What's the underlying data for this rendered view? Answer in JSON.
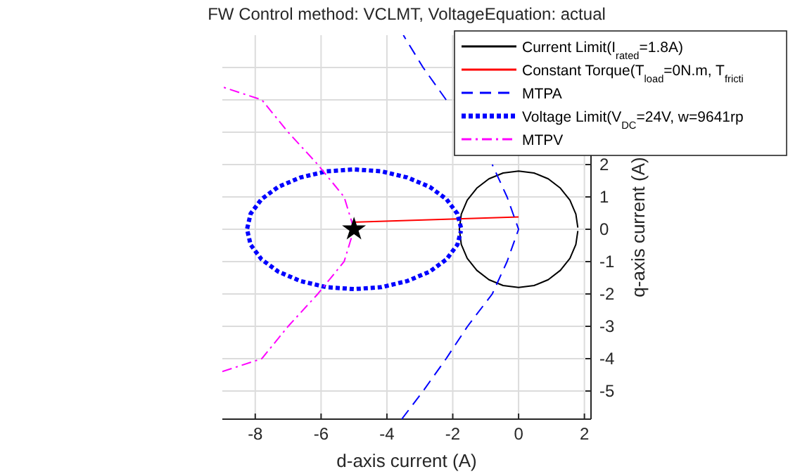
{
  "chart_data": {
    "type": "line",
    "title": "FW Control method: VCLMT, VoltageEquation: actual",
    "xlabel": "d-axis current (A)",
    "ylabel": "q-axis current (A)",
    "xlim": [
      -9,
      2.2
    ],
    "ylim": [
      -5.87,
      6
    ],
    "xticks": [
      -8,
      -6,
      -4,
      -2,
      0,
      2
    ],
    "yticks": [
      -5,
      -4,
      -3,
      -2,
      -1,
      0,
      1,
      2,
      {
        "value": 3,
        "label": null
      },
      {
        "value": 4,
        "label": null
      },
      {
        "value": 5,
        "label": null
      }
    ],
    "grid": true,
    "legend": "top right",
    "series": [
      {
        "name": "Current  Limit(I$_{rated}$=1.8A)",
        "color": "#000000",
        "line_style": "solid",
        "x": [
          1.8,
          1.74,
          1.56,
          1.27,
          0.9,
          0.47,
          0,
          -0.47,
          -0.9,
          -1.27,
          -1.56,
          -1.74,
          -1.8,
          -1.74,
          -1.56,
          -1.27,
          -0.9,
          -0.47,
          0,
          0.47,
          0.9,
          1.27,
          1.56,
          1.74,
          1.8
        ],
        "values": [
          0.05,
          0.47,
          0.9,
          1.27,
          1.56,
          1.74,
          1.8,
          1.74,
          1.56,
          1.27,
          0.9,
          0.47,
          0,
          -0.47,
          -0.9,
          -1.27,
          -1.56,
          -1.74,
          -1.8,
          -1.74,
          -1.56,
          -1.27,
          -0.9,
          -0.47,
          -0.05
        ]
      },
      {
        "name": "Constant  Torque(T$_{load}$=0N.m,  T$_{fricti}$",
        "color": "#ff0000",
        "line_style": "solid",
        "x": [
          -5,
          0
        ],
        "values": [
          0.22,
          0.38
        ]
      },
      {
        "name": "MTPA",
        "color": "#0000ff",
        "line_style": "dashed",
        "x": [
          -3.55,
          -2.9,
          -2.2,
          -1.55,
          -0.8,
          -0.35,
          0,
          -0.35,
          -0.8,
          -1.55,
          -2.2,
          -2.9,
          -3.5
        ],
        "values": [
          -5.87,
          -5,
          -4,
          -3,
          -2,
          -1,
          0,
          1,
          2,
          null,
          4,
          5,
          6
        ]
      },
      {
        "name": "Voltage  Limit(V$_{DC}$=24V,  w=9641rp",
        "color": "#0000ff",
        "line_style": "dotted",
        "x": [
          -1.75,
          -1.86,
          -2.19,
          -2.7,
          -3.38,
          -4.16,
          -5,
          -5.84,
          -6.63,
          -7.3,
          -7.81,
          -8.14,
          -8.25,
          -8.14,
          -7.81,
          -7.3,
          -6.63,
          -5.84,
          -5,
          -4.16,
          -3.38,
          -2.7,
          -2.19,
          -1.86,
          -1.75
        ],
        "values": [
          0.05,
          0.48,
          0.93,
          1.31,
          1.6,
          1.79,
          1.85,
          1.79,
          1.6,
          1.31,
          0.93,
          0.48,
          0,
          -0.48,
          -0.93,
          -1.31,
          -1.6,
          -1.79,
          -1.85,
          -1.79,
          -1.6,
          -1.31,
          -0.93,
          -0.48,
          -0.05
        ]
      },
      {
        "name": "MTPV",
        "color": "#ff00ff",
        "line_style": "dashdot",
        "x": [
          -9,
          -7.8,
          -7,
          -6.1,
          -5.3,
          -5,
          -5.3,
          -6.1,
          -7,
          -7.8,
          -9
        ],
        "values": [
          -4.4,
          -4,
          -3,
          -2,
          -1,
          0,
          1,
          2,
          3,
          4,
          4.4
        ]
      },
      {
        "type": "scatter",
        "color": "#000000",
        "marker": "star",
        "x": [
          -5
        ],
        "values": [
          0
        ]
      }
    ]
  }
}
